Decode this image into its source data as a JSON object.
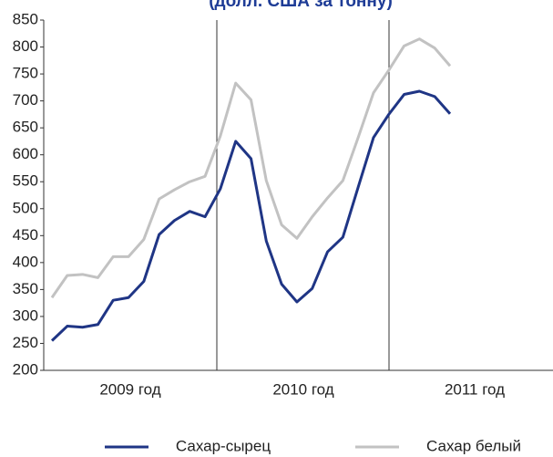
{
  "chart_data": {
    "type": "line",
    "title": "(долл. США за тонну)",
    "categories": [
      null,
      null,
      null,
      null,
      null,
      null,
      null,
      null,
      null,
      null,
      null,
      null,
      null,
      null,
      null,
      null,
      null,
      null,
      null,
      null,
      null,
      null,
      null,
      null,
      null,
      null,
      null
    ],
    "year_labels": [
      "2009 год",
      "2010 год",
      "2011 год"
    ],
    "series": [
      {
        "name": "Сахар-сырец",
        "color": "#1f3585",
        "values": [
          255,
          282,
          280,
          285,
          330,
          335,
          365,
          452,
          478,
          495,
          485,
          537,
          625,
          593,
          440,
          360,
          327,
          352,
          420,
          447,
          540,
          632,
          675,
          712,
          718,
          708,
          676
        ]
      },
      {
        "name": "Сахар белый",
        "color": "#c2c2c2",
        "values": [
          335,
          376,
          378,
          372,
          411,
          411,
          443,
          518,
          535,
          550,
          560,
          635,
          733,
          702,
          552,
          470,
          445,
          485,
          520,
          552,
          632,
          715,
          757,
          802,
          815,
          798,
          765
        ]
      }
    ],
    "ylim": [
      200,
      850
    ],
    "yticks": [
      200,
      250,
      300,
      350,
      400,
      450,
      500,
      550,
      600,
      650,
      700,
      750,
      800,
      850
    ],
    "grid": false,
    "legend": "bottom"
  }
}
